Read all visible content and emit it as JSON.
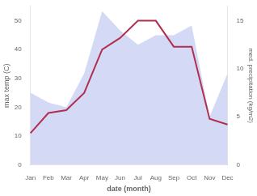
{
  "chart_data": {
    "type": "line",
    "xlabel": "date (month)",
    "ylabel": "max temp (C)",
    "y2label": "med. precipitation (kg/m2)",
    "categories": [
      "Jan",
      "Feb",
      "Mar",
      "Apr",
      "May",
      "Jun",
      "Jul",
      "Aug",
      "Sep",
      "Oct",
      "Nov",
      "Dec"
    ],
    "series": [
      {
        "type": "area",
        "axis": "y2",
        "color": "#b8c0ee",
        "values": [
          7.5,
          6.5,
          6.0,
          9.5,
          16.0,
          14.0,
          12.5,
          13.5,
          13.5,
          14.5,
          5.0,
          9.5
        ]
      },
      {
        "type": "line",
        "color": "#b03050",
        "values": [
          11,
          18,
          19,
          25,
          40,
          44,
          50,
          50,
          41,
          41,
          16,
          14
        ]
      }
    ],
    "ylim": [
      0,
      55
    ],
    "yticks": [
      0,
      10,
      20,
      30,
      40,
      50
    ],
    "y2lim": [
      0,
      16.5
    ],
    "y2ticks": [
      0,
      5,
      10,
      15
    ],
    "grid": false
  }
}
